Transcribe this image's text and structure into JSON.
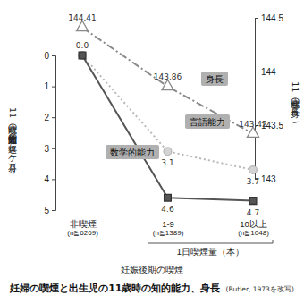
{
  "chart_data": {
    "type": "line",
    "title": "妊婦の喫煙と出生児の11歳時の知的能力、身長",
    "x_label": "1日喫煙量（本）",
    "y_label": "11歳時の知的能力発達の遅れ（ケ月分）",
    "y2_label": "11歳時の身長（cm）",
    "annotations": [
      "妊娠後期の喫煙",
      "(Butler, 1973を改写)"
    ],
    "categories": [
      "非喫煙\n(n≧6269)",
      "1-9\n(n≧1389)",
      "10以上\n(n≧1048)"
    ],
    "ylim": [
      5,
      0
    ],
    "yticks": [
      0,
      1,
      2,
      3,
      4,
      5
    ],
    "y2lim": [
      143,
      144.5
    ],
    "y2ticks": [
      143,
      143.5,
      144,
      144.5
    ],
    "data_labels": true,
    "series": [
      {
        "name": "身長",
        "axis": "y2",
        "color": "#8a8a8a",
        "marker": "triangle",
        "line_style": "dashdot",
        "values": [
          144.41,
          143.86,
          143.42
        ]
      },
      {
        "name": "言語能力",
        "color": "#b8b8b8",
        "marker": "circle",
        "line_style": "dotted",
        "values": [
          0,
          3.1,
          3.7
        ],
        "value_labels": [
          "0.0",
          "3.1",
          "3.7"
        ]
      },
      {
        "name": "数学的能力",
        "color": "#555555",
        "marker": "square",
        "line_style": "solid",
        "values": [
          0,
          4.6,
          4.7
        ],
        "value_labels": [
          null,
          "4.6",
          "4.7"
        ]
      }
    ]
  }
}
